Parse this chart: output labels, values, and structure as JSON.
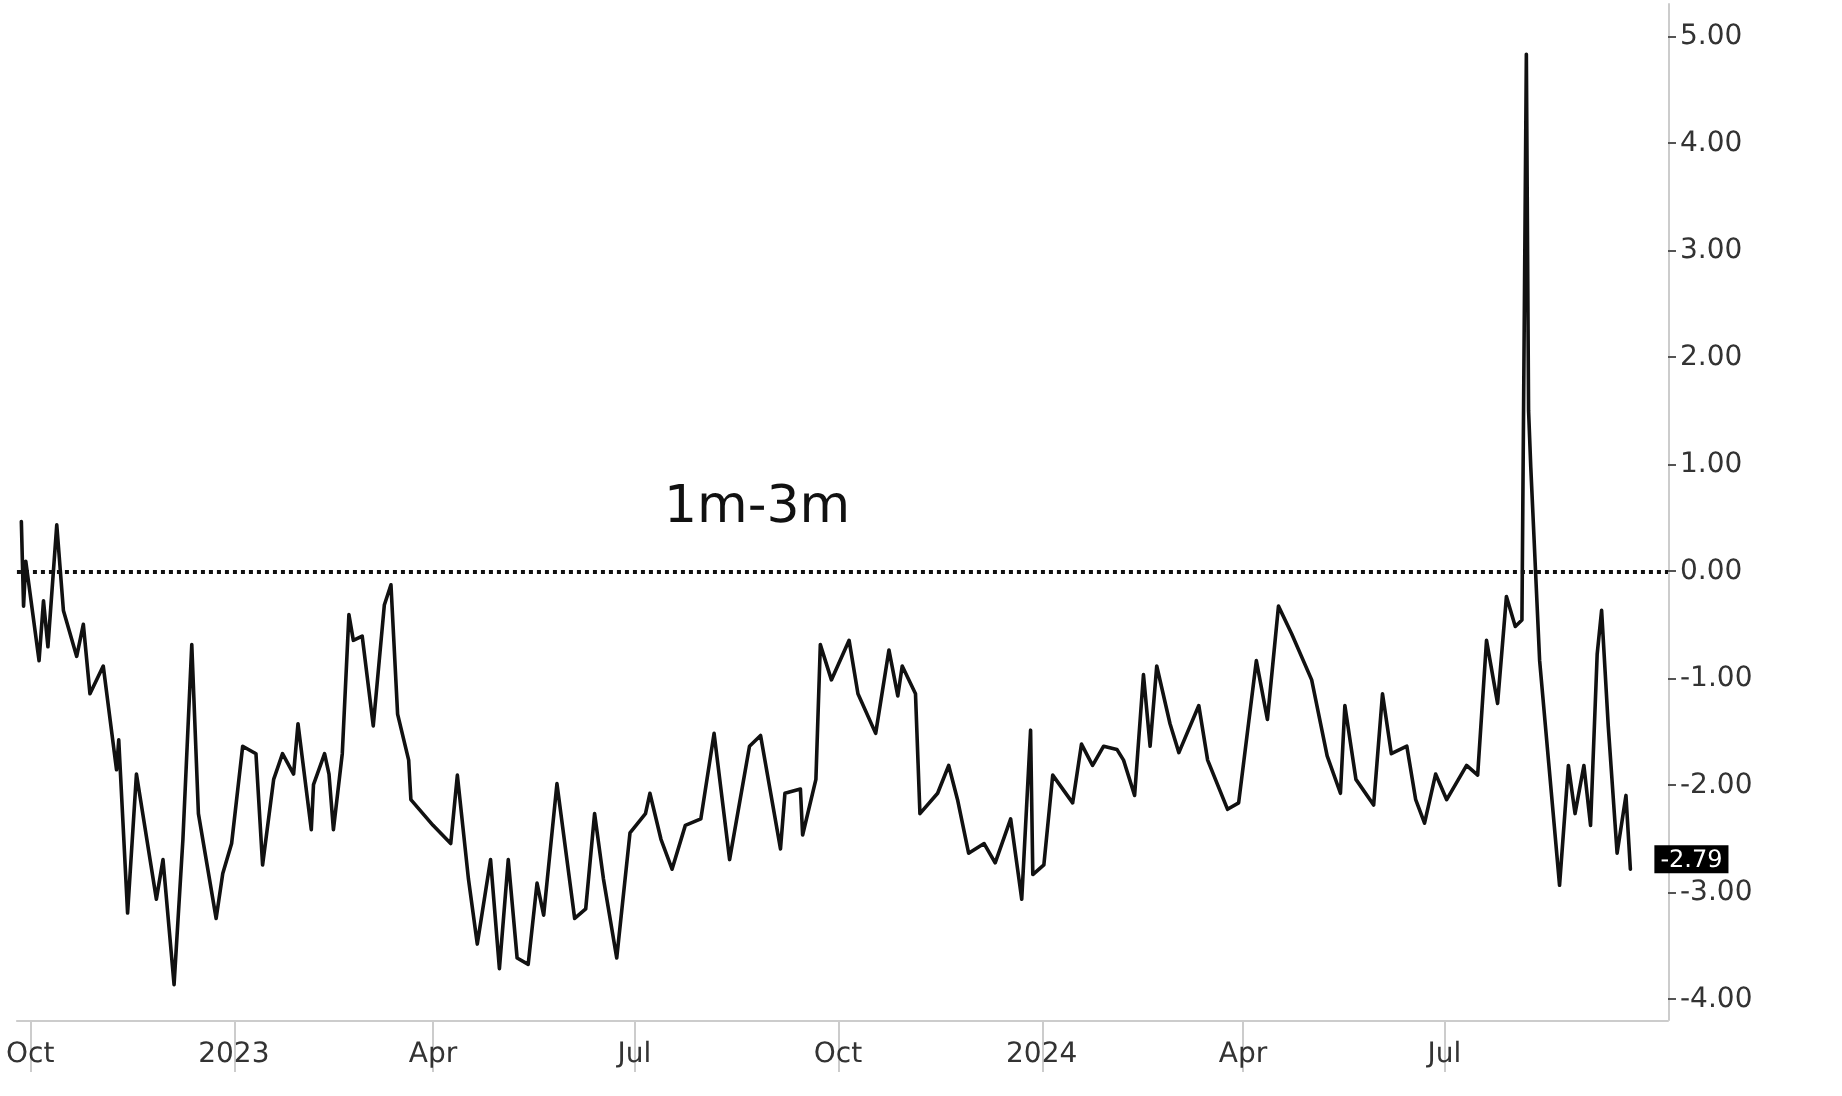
{
  "chart_data": {
    "type": "line",
    "annotations": [
      "1m-3m"
    ],
    "x": [
      "2022-09-27",
      "2022-09-28",
      "2022-09-29",
      "2022-10-05",
      "2022-10-07",
      "2022-10-09",
      "2022-10-13",
      "2022-10-16",
      "2022-10-22",
      "2022-10-25",
      "2022-10-28",
      "2022-11-03",
      "2022-11-09",
      "2022-11-10",
      "2022-11-14",
      "2022-11-18",
      "2022-11-27",
      "2022-11-30",
      "2022-12-05",
      "2022-12-09",
      "2022-12-13",
      "2022-12-16",
      "2022-12-24",
      "2022-12-27",
      "2022-12-31",
      "2023-01-05",
      "2023-01-11",
      "2023-01-14",
      "2023-01-19",
      "2023-01-23",
      "2023-01-28",
      "2023-01-30",
      "2023-02-05",
      "2023-02-06",
      "2023-02-11",
      "2023-02-13",
      "2023-02-15",
      "2023-02-19",
      "2023-02-22",
      "2023-02-24",
      "2023-02-28",
      "2023-03-05",
      "2023-03-10",
      "2023-03-13",
      "2023-03-16",
      "2023-03-21",
      "2023-03-22",
      "2023-04-01",
      "2023-04-09",
      "2023-04-12",
      "2023-04-17",
      "2023-04-21",
      "2023-04-27",
      "2023-05-01",
      "2023-05-05",
      "2023-05-09",
      "2023-05-14",
      "2023-05-18",
      "2023-05-21",
      "2023-05-27",
      "2023-06-04",
      "2023-06-09",
      "2023-06-13",
      "2023-06-17",
      "2023-06-23",
      "2023-06-29",
      "2023-07-06",
      "2023-07-08",
      "2023-07-13",
      "2023-07-18",
      "2023-07-24",
      "2023-07-31",
      "2023-08-06",
      "2023-08-13",
      "2023-08-22",
      "2023-08-27",
      "2023-09-05",
      "2023-09-07",
      "2023-09-14",
      "2023-09-15",
      "2023-09-21",
      "2023-09-23",
      "2023-09-28",
      "2023-10-06",
      "2023-10-10",
      "2023-10-18",
      "2023-10-24",
      "2023-10-28",
      "2023-10-30",
      "2023-11-05",
      "2023-11-07",
      "2023-11-15",
      "2023-11-20",
      "2023-11-24",
      "2023-11-29",
      "2023-12-06",
      "2023-12-11",
      "2023-12-18",
      "2023-12-23",
      "2023-12-27",
      "2023-12-28",
      "2024-01-02",
      "2024-01-06",
      "2024-01-15",
      "2024-01-19",
      "2024-01-24",
      "2024-01-29",
      "2024-02-04",
      "2024-02-07",
      "2024-02-12",
      "2024-02-16",
      "2024-02-19",
      "2024-02-22",
      "2024-02-28",
      "2024-03-03",
      "2024-03-12",
      "2024-03-16",
      "2024-03-25",
      "2024-03-30",
      "2024-04-07",
      "2024-04-12",
      "2024-04-17",
      "2024-04-23",
      "2024-05-02",
      "2024-05-09",
      "2024-05-15",
      "2024-05-17",
      "2024-05-22",
      "2024-05-30",
      "2024-06-03",
      "2024-06-07",
      "2024-06-14",
      "2024-06-18",
      "2024-06-22",
      "2024-06-27",
      "2024-07-02",
      "2024-07-11",
      "2024-07-16",
      "2024-07-20",
      "2024-07-25",
      "2024-07-29",
      "2024-08-02",
      "2024-08-05",
      "2024-08-07",
      "2024-08-08",
      "2024-08-09",
      "2024-08-13",
      "2024-08-22",
      "2024-08-26",
      "2024-08-29",
      "2024-09-02",
      "2024-09-05",
      "2024-09-08",
      "2024-09-10",
      "2024-09-13",
      "2024-09-17",
      "2024-09-21",
      "2024-09-23"
    ],
    "series": [
      {
        "color": "#111111",
        "values": [
          0.46,
          -0.33,
          0.09,
          -0.84,
          -0.28,
          -0.71,
          0.43,
          -0.37,
          -0.8,
          -0.5,
          -1.15,
          -0.89,
          -1.86,
          -1.58,
          -3.2,
          -1.9,
          -3.07,
          -2.7,
          -3.87,
          -2.51,
          -0.69,
          -2.27,
          -3.25,
          -2.83,
          -2.55,
          -1.64,
          -1.71,
          -2.75,
          -1.95,
          -1.71,
          -1.9,
          -1.43,
          -2.42,
          -2.0,
          -1.71,
          -1.9,
          -2.42,
          -1.71,
          -0.41,
          -0.65,
          -0.61,
          -1.45,
          -0.32,
          -0.13,
          -1.34,
          -1.77,
          -2.14,
          -2.38,
          -2.55,
          -1.91,
          -2.88,
          -3.49,
          -2.7,
          -3.72,
          -2.7,
          -3.62,
          -3.68,
          -2.92,
          -3.22,
          -1.99,
          -3.25,
          -3.16,
          -2.27,
          -2.88,
          -3.62,
          -2.45,
          -2.27,
          -2.08,
          -2.51,
          -2.79,
          -2.38,
          -2.32,
          -1.52,
          -2.7,
          -1.64,
          -1.54,
          -2.6,
          -2.08,
          -2.04,
          -2.47,
          -1.95,
          -0.69,
          -1.02,
          -0.65,
          -1.15,
          -1.52,
          -0.74,
          -1.17,
          -0.89,
          -1.15,
          -2.27,
          -2.08,
          -1.82,
          -2.14,
          -2.64,
          -2.55,
          -2.73,
          -2.32,
          -3.07,
          -1.49,
          -2.84,
          -2.75,
          -1.91,
          -2.17,
          -1.62,
          -1.82,
          -1.64,
          -1.67,
          -1.77,
          -2.1,
          -0.97,
          -1.64,
          -0.89,
          -1.43,
          -1.7,
          -1.26,
          -1.77,
          -2.23,
          -2.17,
          -0.84,
          -1.39,
          -0.33,
          -0.59,
          -1.02,
          -1.73,
          -2.08,
          -1.26,
          -1.95,
          -2.19,
          -1.15,
          -1.71,
          -1.64,
          -2.14,
          -2.36,
          -1.9,
          -2.14,
          -1.82,
          -1.91,
          -0.65,
          -1.24,
          -0.24,
          -0.52,
          -0.46,
          4.83,
          1.5,
          0.97,
          -0.84,
          -2.94,
          -1.82,
          -2.27,
          -1.82,
          -2.38,
          -0.78,
          -0.37,
          -1.45,
          -2.64,
          -2.1,
          -2.79
        ],
        "value_labels": [
          null,
          null,
          null,
          null,
          null,
          null,
          null,
          null,
          null,
          null,
          null,
          null,
          null,
          null,
          null,
          null,
          null,
          null,
          null,
          null,
          null,
          null,
          null,
          null,
          null,
          null,
          null,
          null,
          null,
          null,
          null,
          null,
          null,
          null,
          null,
          null,
          null,
          null,
          null,
          null,
          null,
          null,
          null,
          null,
          null,
          null,
          null,
          null,
          null,
          null,
          null,
          null,
          null,
          null,
          null,
          null,
          null,
          null,
          null,
          null,
          null,
          null,
          null,
          null,
          null,
          null,
          null,
          null,
          null,
          null,
          null,
          null,
          null,
          null,
          null,
          null,
          null,
          null,
          null,
          null,
          null,
          null,
          null,
          null,
          null,
          null,
          null,
          null,
          null,
          null,
          null,
          null,
          null,
          null,
          null,
          null,
          null,
          null,
          null,
          null,
          null,
          null,
          null,
          null,
          null,
          null,
          null,
          null,
          null,
          null,
          null,
          null,
          null,
          null,
          null,
          null,
          null,
          null,
          null,
          null,
          null,
          null,
          null,
          null,
          null,
          null,
          null,
          null,
          null,
          null,
          null,
          null,
          null,
          null,
          null,
          null,
          null,
          null,
          null,
          null,
          null,
          null,
          null,
          null,
          null,
          null,
          null,
          null,
          null,
          null,
          null,
          null,
          null,
          null,
          null,
          null,
          null,
          "-2.79"
        ]
      }
    ],
    "xlim": [
      "2022-09-25",
      "2024-10-10"
    ],
    "xticks": [
      {
        "value": "2022-10-01",
        "label": "Oct"
      },
      {
        "value": "2023-01-01",
        "label": "2023"
      },
      {
        "value": "2023-04-01",
        "label": "Apr"
      },
      {
        "value": "2023-07-01",
        "label": "Jul"
      },
      {
        "value": "2023-10-01",
        "label": "Oct"
      },
      {
        "value": "2024-01-01",
        "label": "2024"
      },
      {
        "value": "2024-04-01",
        "label": "Apr"
      },
      {
        "value": "2024-07-01",
        "label": "Jul"
      }
    ],
    "ylim": [
      -4.2,
      5.3
    ],
    "yticks": [
      {
        "value": -4,
        "label": "-4.00"
      },
      {
        "value": -3,
        "label": "-3.00"
      },
      {
        "value": -2,
        "label": "-2.00"
      },
      {
        "value": -1,
        "label": "-1.00"
      },
      {
        "value": 0,
        "label": "0.00"
      },
      {
        "value": 1,
        "label": "1.00"
      },
      {
        "value": 2,
        "label": "2.00"
      },
      {
        "value": 3,
        "label": "3.00"
      },
      {
        "value": 4,
        "label": "4.00"
      },
      {
        "value": 5,
        "label": "5.00"
      }
    ],
    "ref_lines": [
      {
        "axis": "y",
        "value": 0,
        "color": "#111111",
        "line_style": "dotted"
      }
    ],
    "marker": "none",
    "line_style": "solid"
  }
}
